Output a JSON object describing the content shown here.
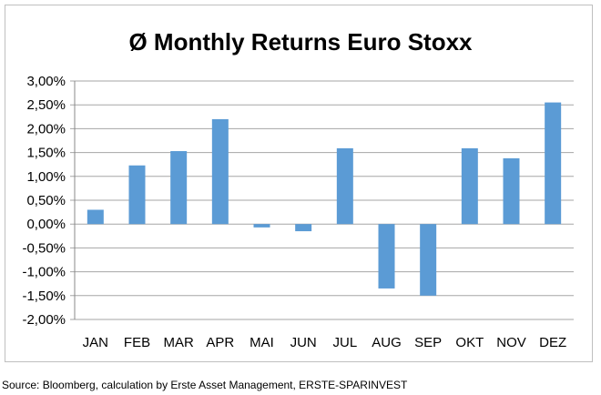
{
  "chart_data": {
    "type": "bar",
    "title": "Ø Monthly Returns Euro Stoxx",
    "xlabel": "",
    "ylabel": "",
    "categories": [
      "JAN",
      "FEB",
      "MAR",
      "APR",
      "MAI",
      "JUN",
      "JUL",
      "AUG",
      "SEP",
      "OKT",
      "NOV",
      "DEZ"
    ],
    "values": [
      0.3,
      1.23,
      1.53,
      2.2,
      -0.07,
      -0.15,
      1.59,
      -1.35,
      -1.5,
      1.59,
      1.38,
      2.55
    ],
    "ylim": [
      -2.0,
      3.0
    ],
    "yticks": [
      "3,00%",
      "2,50%",
      "2,00%",
      "1,50%",
      "1,00%",
      "0,50%",
      "0,00%",
      "-0,50%",
      "-1,00%",
      "-1,50%",
      "-2,00%"
    ],
    "grid": true,
    "legend": "none",
    "bar_color": "#5b9bd5",
    "grid_color": "#a6a6a6"
  },
  "source": "Source: Bloomberg, calculation by Erste Asset Management, ERSTE-SPARINVEST"
}
